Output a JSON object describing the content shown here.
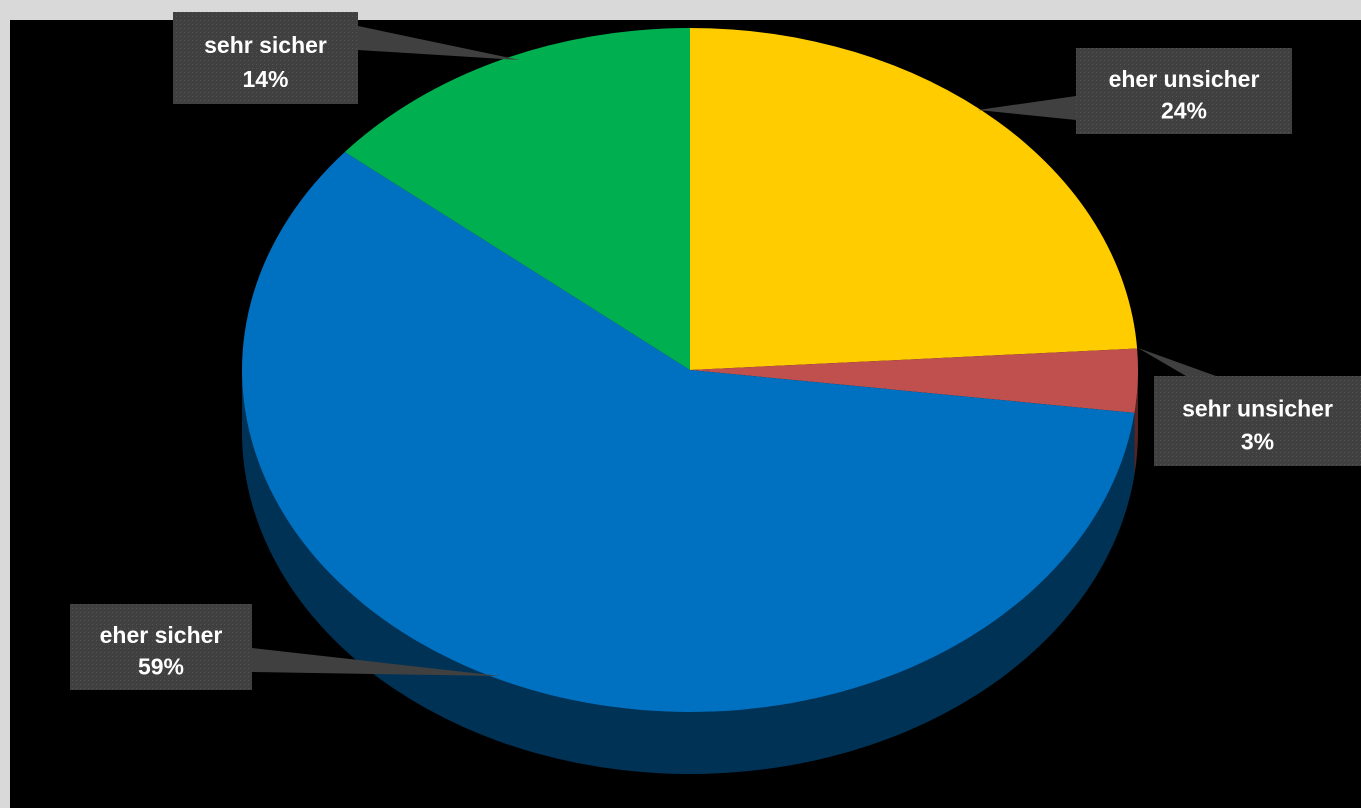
{
  "chart_data": {
    "type": "pie",
    "style": "3d-tilted",
    "slices": [
      {
        "category": "eher unsicher",
        "value": 24,
        "label": "24%",
        "color": "#ffcc00"
      },
      {
        "category": "sehr unsicher",
        "value": 3,
        "label": "3%",
        "color": "#c0504d"
      },
      {
        "category": "eher sicher",
        "value": 59,
        "label": "59%",
        "color": "#0070c0"
      },
      {
        "category": "sehr sicher",
        "value": 14,
        "label": "14%",
        "color": "#00b050"
      }
    ],
    "label_background": "#404040",
    "background": "#000000"
  }
}
